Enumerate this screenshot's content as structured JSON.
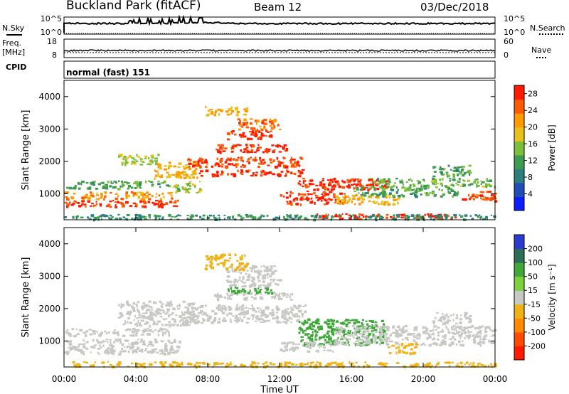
{
  "header": {
    "station": "Buckland Park (fitACF)",
    "beam": "Beam 12",
    "date": "03/Dec/2018"
  },
  "status_panel": {
    "nsky_label": "N.Sky",
    "nsearch_label": "N.Search",
    "freq_label": "Freq.",
    "freq_unit": "[MHz]",
    "nave_label": "Nave",
    "cpid_label": "CPID",
    "cpid_value": "normal (fast) 151",
    "noise_ticks_left": [
      "10^5",
      "10^0"
    ],
    "noise_ticks_right": [
      "10^5",
      "10^0"
    ],
    "freq_ticks": [
      "18",
      "8"
    ],
    "nave_ticks": [
      "60",
      "0"
    ]
  },
  "chart_data": [
    {
      "type": "heatmap",
      "name": "Power",
      "ylabel": "Slant Range [km]",
      "ylim": [
        200,
        4500
      ],
      "yticks": [
        "1000",
        "2000",
        "3000",
        "4000"
      ],
      "xlim": [
        "00:00",
        "24:00"
      ],
      "colorbar_label": "Power [dB]",
      "colorbar_ticks": [
        "28",
        "24",
        "20",
        "16",
        "12",
        "8",
        "4"
      ],
      "colorbar_range": [
        0,
        30
      ],
      "colorbar_colors": [
        "#0a1eff",
        "#1f4fb5",
        "#2c7f7c",
        "#3f9a52",
        "#7bbf3a",
        "#e8c21a",
        "#ff9a00",
        "#ff5a00",
        "#ff1a00"
      ],
      "regions": [
        {
          "t": [
            0.0,
            6.4
          ],
          "r": [
            620,
            820
          ],
          "v": 28
        },
        {
          "t": [
            0.0,
            6.0
          ],
          "r": [
            860,
            1080
          ],
          "v": 22
        },
        {
          "t": [
            0.0,
            5.8
          ],
          "r": [
            1180,
            1420
          ],
          "v": 12
        },
        {
          "t": [
            3.0,
            5.2
          ],
          "r": [
            1900,
            2250
          ],
          "v": 16
        },
        {
          "t": [
            5.0,
            7.4
          ],
          "r": [
            1500,
            2000
          ],
          "v": 20
        },
        {
          "t": [
            6.0,
            7.6
          ],
          "r": [
            1050,
            1400
          ],
          "v": 16
        },
        {
          "t": [
            7.5,
            13.4
          ],
          "r": [
            1580,
            1760
          ],
          "v": 28
        },
        {
          "t": [
            6.8,
            13.2
          ],
          "r": [
            1850,
            2150
          ],
          "v": 26
        },
        {
          "t": [
            8.3,
            12.6
          ],
          "r": [
            2300,
            2550
          ],
          "v": 28
        },
        {
          "t": [
            9.0,
            11.6
          ],
          "r": [
            2700,
            2980
          ],
          "v": 28
        },
        {
          "t": [
            9.5,
            12.0
          ],
          "r": [
            3000,
            3350
          ],
          "v": 24
        },
        {
          "t": [
            7.8,
            10.2
          ],
          "r": [
            3450,
            3700
          ],
          "v": 20
        },
        {
          "t": [
            12.0,
            15.6
          ],
          "r": [
            700,
            1100
          ],
          "v": 28
        },
        {
          "t": [
            13.0,
            18.0
          ],
          "r": [
            1150,
            1500
          ],
          "v": 28
        },
        {
          "t": [
            15.0,
            18.6
          ],
          "r": [
            700,
            1000
          ],
          "v": 20
        },
        {
          "t": [
            16.0,
            22.0
          ],
          "r": [
            950,
            1250
          ],
          "v": 12
        },
        {
          "t": [
            17.0,
            24.0
          ],
          "r": [
            1250,
            1500
          ],
          "v": 14
        },
        {
          "t": [
            20.5,
            22.6
          ],
          "r": [
            1550,
            1900
          ],
          "v": 12
        },
        {
          "t": [
            14.0,
            22.0
          ],
          "r": [
            250,
            400
          ],
          "v": 28
        },
        {
          "t": [
            22.0,
            24.0
          ],
          "r": [
            800,
            1100
          ],
          "v": 26
        },
        {
          "t": [
            0.0,
            24.0
          ],
          "r": [
            230,
            380
          ],
          "v": 10
        }
      ]
    },
    {
      "type": "heatmap",
      "name": "Velocity",
      "ylabel": "Slant Range [km]",
      "xlabel": "Time UT",
      "ylim": [
        200,
        4500
      ],
      "yticks": [
        "1000",
        "2000",
        "3000",
        "4000"
      ],
      "xlim": [
        "00:00",
        "24:00"
      ],
      "xticks": [
        "00:00",
        "04:00",
        "08:00",
        "12:00",
        "16:00",
        "20:00",
        "00:00"
      ],
      "colorbar_label": "Velocity [m s⁻¹]",
      "colorbar_ticks": [
        "200",
        "100",
        "50",
        "15",
        "-15",
        "-50",
        "-100",
        "-200"
      ],
      "colorbar_colors": [
        "#2b3bd0",
        "#2f6e56",
        "#40a83a",
        "#7dd13a",
        "#c8c8c4",
        "#f0b214",
        "#ff8a00",
        "#ff4a00",
        "#ff1a00"
      ],
      "regions": [
        {
          "t": [
            0.0,
            6.4
          ],
          "r": [
            620,
            1080
          ],
          "v": 0
        },
        {
          "t": [
            0.0,
            5.8
          ],
          "r": [
            1180,
            1420
          ],
          "v": 0
        },
        {
          "t": [
            3.0,
            7.4
          ],
          "r": [
            1500,
            2250
          ],
          "v": 0
        },
        {
          "t": [
            6.8,
            13.4
          ],
          "r": [
            1580,
            2150
          ],
          "v": 0
        },
        {
          "t": [
            8.3,
            12.6
          ],
          "r": [
            2300,
            2550
          ],
          "v": 0
        },
        {
          "t": [
            9.0,
            11.6
          ],
          "r": [
            2500,
            2700
          ],
          "v": 60
        },
        {
          "t": [
            9.0,
            12.0
          ],
          "r": [
            2700,
            3350
          ],
          "v": 0
        },
        {
          "t": [
            7.8,
            10.2
          ],
          "r": [
            3200,
            3700
          ],
          "v": -30
        },
        {
          "t": [
            13.0,
            17.8
          ],
          "r": [
            900,
            1700
          ],
          "v": 60
        },
        {
          "t": [
            12.0,
            15.0
          ],
          "r": [
            700,
            1000
          ],
          "v": 0
        },
        {
          "t": [
            15.0,
            24.0
          ],
          "r": [
            900,
            1500
          ],
          "v": 0
        },
        {
          "t": [
            18.0,
            19.6
          ],
          "r": [
            650,
            950
          ],
          "v": -40
        },
        {
          "t": [
            20.5,
            22.6
          ],
          "r": [
            1550,
            1900
          ],
          "v": 0
        },
        {
          "t": [
            0.0,
            24.0
          ],
          "r": [
            230,
            380
          ],
          "v": -30
        }
      ]
    }
  ]
}
